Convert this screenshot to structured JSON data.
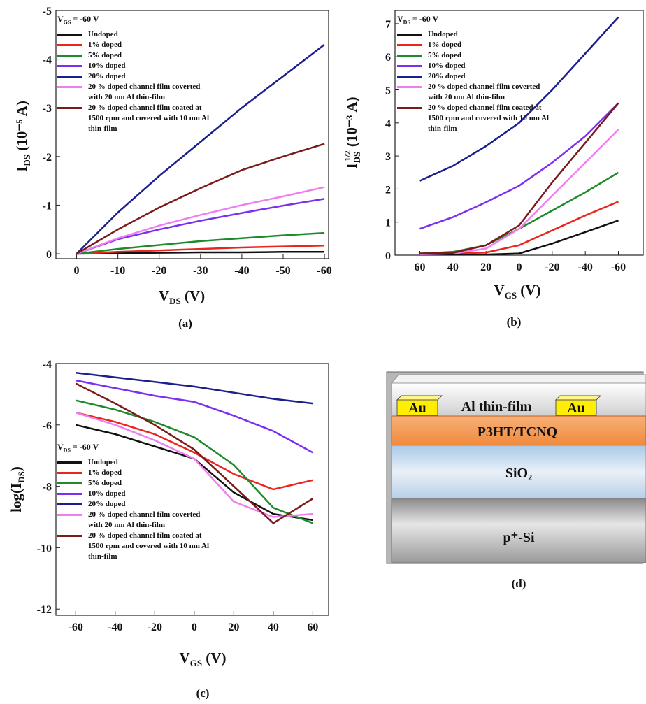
{
  "chart_data": [
    {
      "type": "line",
      "caption": "(a)",
      "xlabel": {
        "main": "V",
        "sub": "DS",
        "rest": " (V)"
      },
      "ylabel": {
        "main": "I",
        "sub": "DS",
        "rest": " (10⁻⁵ A)"
      },
      "annotation": {
        "main": "V",
        "sub": "GS",
        "rest": " = -60 V"
      },
      "x": [
        0,
        -10,
        -20,
        -30,
        -40,
        -50,
        -60
      ],
      "xlim": [
        5,
        -61
      ],
      "xticks": [
        0,
        -10,
        -20,
        -30,
        -40,
        -50,
        -60
      ],
      "ylim": [
        0.1,
        -5
      ],
      "yticks": [
        0,
        -1,
        -2,
        -3,
        -4,
        -5
      ],
      "series": [
        {
          "name": "Undoped",
          "color": "#111111",
          "values": [
            0,
            -0.01,
            -0.02,
            -0.03,
            -0.03,
            -0.04,
            -0.04
          ]
        },
        {
          "name": "1% doped",
          "color": "#e8261e",
          "values": [
            0,
            -0.04,
            -0.07,
            -0.1,
            -0.13,
            -0.15,
            -0.17
          ]
        },
        {
          "name": "5% doped",
          "color": "#1e8a2a",
          "values": [
            0,
            -0.1,
            -0.18,
            -0.26,
            -0.32,
            -0.38,
            -0.43
          ]
        },
        {
          "name": "10% doped",
          "color": "#7b2ff0",
          "values": [
            0,
            -0.3,
            -0.5,
            -0.68,
            -0.84,
            -0.99,
            -1.13
          ]
        },
        {
          "name": "20% doped",
          "color": "#1a1f8c",
          "values": [
            0,
            -0.85,
            -1.6,
            -2.3,
            -3.0,
            -3.65,
            -4.3
          ]
        },
        {
          "name": "20 % doped channel film coverted with 20 nm Al thin-film",
          "color": "#f07ef0",
          "values": [
            0,
            -0.32,
            -0.58,
            -0.8,
            -1.0,
            -1.18,
            -1.37
          ]
        },
        {
          "name": "20 % doped channel film coated at 1500 rpm and covered with 10 nm Al thin-film",
          "color": "#7a1a1a",
          "values": [
            0,
            -0.5,
            -0.95,
            -1.35,
            -1.72,
            -2.0,
            -2.26
          ]
        }
      ]
    },
    {
      "type": "line",
      "caption": "(b)",
      "xlabel": {
        "main": "V",
        "sub": "GS",
        "rest": " (V)"
      },
      "ylabel": {
        "main": "I",
        "sub": "DS",
        "sup": "1/2",
        "rest": " (10⁻³ A)"
      },
      "annotation": {
        "main": "V",
        "sub": "DS",
        "rest": " = -60 V"
      },
      "x": [
        60,
        40,
        20,
        0,
        -20,
        -40,
        -60
      ],
      "xlim": [
        75,
        -75
      ],
      "xticks": [
        60,
        40,
        20,
        0,
        -20,
        -40,
        -60
      ],
      "ylim": [
        0,
        7.4
      ],
      "yticks": [
        0,
        1,
        2,
        3,
        4,
        5,
        6,
        7
      ],
      "series": [
        {
          "name": "Undoped",
          "color": "#111111",
          "values": [
            0.02,
            0.02,
            0.02,
            0.05,
            0.35,
            0.7,
            1.05
          ]
        },
        {
          "name": "1% doped",
          "color": "#e8261e",
          "values": [
            0.05,
            0.05,
            0.08,
            0.3,
            0.75,
            1.2,
            1.62
          ]
        },
        {
          "name": "5% doped",
          "color": "#1e8a2a",
          "values": [
            0.05,
            0.1,
            0.3,
            0.8,
            1.35,
            1.9,
            2.5
          ]
        },
        {
          "name": "10% doped",
          "color": "#7b2ff0",
          "values": [
            0.8,
            1.15,
            1.6,
            2.1,
            2.8,
            3.6,
            4.6
          ]
        },
        {
          "name": "20% doped",
          "color": "#1a1f8c",
          "values": [
            2.25,
            2.7,
            3.3,
            4.0,
            5.0,
            6.1,
            7.2
          ]
        },
        {
          "name": "20 % doped channel film coverted with 20 nm Al thin-film",
          "color": "#f07ef0",
          "values": [
            0.03,
            0.05,
            0.2,
            0.8,
            1.8,
            2.8,
            3.8
          ]
        },
        {
          "name": "20 % doped channel film coated at 1500 rpm and covered with 10 nm Al thin-film",
          "color": "#7a1a1a",
          "values": [
            0.05,
            0.07,
            0.3,
            0.9,
            2.2,
            3.4,
            4.6
          ]
        }
      ]
    },
    {
      "type": "line",
      "caption": "(c)",
      "xlabel": {
        "main": "V",
        "sub": "GS",
        "rest": " (V)"
      },
      "ylabel": {
        "main": "log(I",
        "sub": "DS",
        "rest": ")"
      },
      "annotation": {
        "main": "V",
        "sub": "DS",
        "rest": " = -60 V"
      },
      "x": [
        -60,
        -40,
        -20,
        0,
        20,
        40,
        60
      ],
      "xlim": [
        -70,
        68
      ],
      "xticks": [
        -60,
        -40,
        -20,
        0,
        20,
        40,
        60
      ],
      "ylim": [
        -12.2,
        -4
      ],
      "yticks": [
        -4,
        -6,
        -8,
        -10,
        -12
      ],
      "series": [
        {
          "name": "Undoped",
          "color": "#111111",
          "values": [
            -6,
            -6.3,
            -6.7,
            -7.1,
            -8.2,
            -8.9,
            -9.1
          ]
        },
        {
          "name": "1% doped",
          "color": "#e8261e",
          "values": [
            -5.6,
            -5.9,
            -6.3,
            -6.9,
            -7.6,
            -8.1,
            -7.8
          ]
        },
        {
          "name": "5% doped",
          "color": "#1e8a2a",
          "values": [
            -5.2,
            -5.5,
            -5.9,
            -6.4,
            -7.3,
            -8.7,
            -9.2
          ]
        },
        {
          "name": "10% doped",
          "color": "#7b2ff0",
          "values": [
            -4.55,
            -4.8,
            -5.05,
            -5.25,
            -5.7,
            -6.2,
            -6.9
          ]
        },
        {
          "name": "20% doped",
          "color": "#1a1f8c",
          "values": [
            -4.3,
            -4.45,
            -4.6,
            -4.75,
            -4.95,
            -5.15,
            -5.3
          ]
        },
        {
          "name": "20 % doped channel film coverted with 20 nm Al thin-film",
          "color": "#f07ef0",
          "values": [
            -5.6,
            -6.0,
            -6.5,
            -7.1,
            -8.5,
            -9.0,
            -8.9
          ]
        },
        {
          "name": "20 % doped channel film coated at 1500 rpm and covered with 10 nm Al thin-film",
          "color": "#7a1a1a",
          "values": [
            -4.65,
            -5.3,
            -6.0,
            -6.8,
            -8.0,
            -9.2,
            -8.4
          ]
        }
      ]
    }
  ],
  "diagram": {
    "caption": "(d)",
    "layers": [
      "Al thin-film",
      "P3HT/TCNQ",
      "SiO₂",
      "p⁺-Si"
    ],
    "electrodes": [
      "Au",
      "Au"
    ]
  }
}
